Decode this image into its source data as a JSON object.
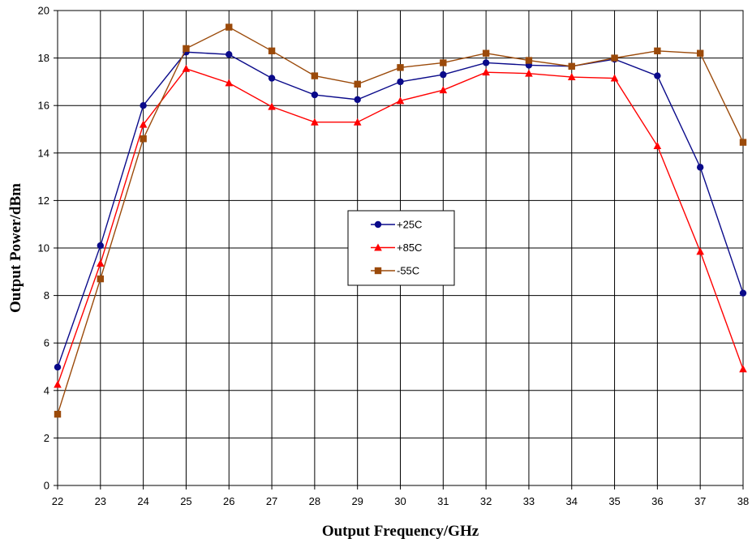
{
  "chart_data": {
    "type": "line",
    "xlabel": "Output Frequency/GHz",
    "ylabel": "Output Power/dBm",
    "xlim": [
      22,
      38
    ],
    "ylim": [
      0,
      20
    ],
    "x": [
      22,
      23,
      24,
      25,
      26,
      27,
      28,
      29,
      30,
      31,
      32,
      33,
      34,
      35,
      36,
      37,
      38
    ],
    "x_ticks": [
      "22",
      "23",
      "24",
      "25",
      "26",
      "27",
      "28",
      "29",
      "30",
      "31",
      "32",
      "33",
      "34",
      "35",
      "36",
      "37",
      "38"
    ],
    "y_ticks": [
      "0",
      "2",
      "4",
      "6",
      "8",
      "10",
      "12",
      "14",
      "16",
      "18",
      "20"
    ],
    "grid": true,
    "legend_position": "center-right",
    "series": [
      {
        "name": "+25C",
        "color": "#0a0a8a",
        "marker": "circle",
        "values": [
          4.98,
          10.1,
          16.0,
          18.25,
          18.15,
          17.15,
          16.45,
          16.25,
          17.0,
          17.3,
          17.8,
          17.7,
          17.65,
          17.95,
          17.25,
          13.4,
          8.1
        ]
      },
      {
        "name": "+85C",
        "color": "#ff0000",
        "marker": "triangle",
        "values": [
          4.25,
          9.35,
          15.2,
          17.55,
          16.95,
          15.95,
          15.3,
          15.3,
          16.2,
          16.65,
          17.4,
          17.35,
          17.2,
          17.15,
          14.3,
          9.85,
          4.9
        ]
      },
      {
        "name": "-55C",
        "color": "#9b4a0a",
        "marker": "square",
        "values": [
          3.0,
          8.7,
          14.6,
          18.4,
          19.3,
          18.3,
          17.25,
          16.9,
          17.6,
          17.8,
          18.2,
          17.9,
          17.65,
          18.0,
          18.3,
          18.2,
          14.45
        ]
      }
    ]
  }
}
